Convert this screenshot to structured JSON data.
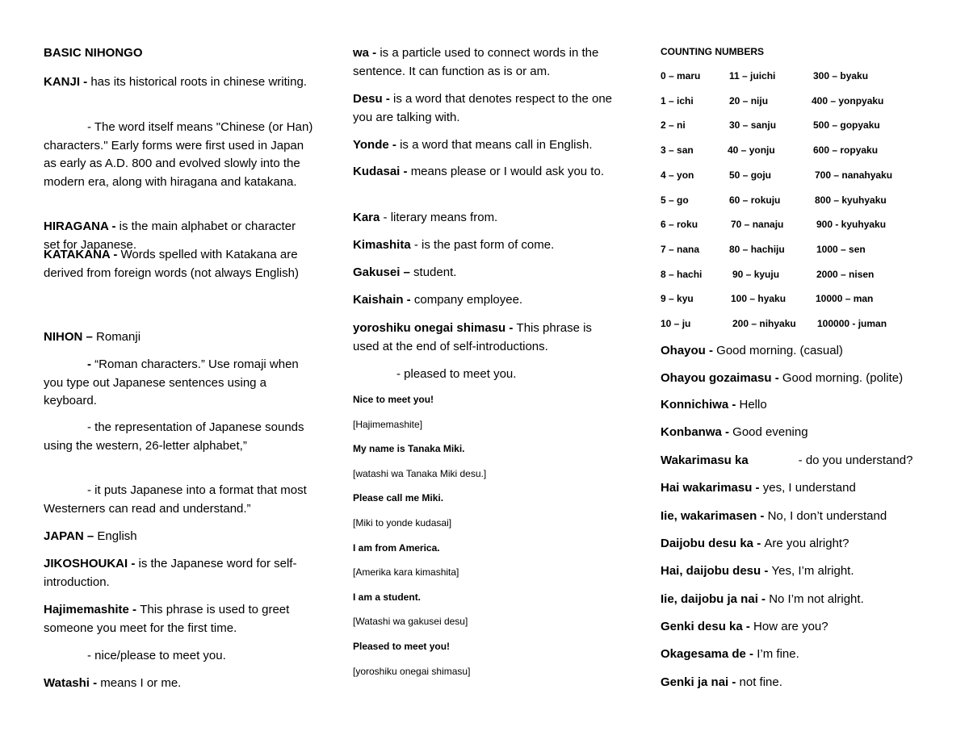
{
  "col1": {
    "title": "BASIC NIHONGO",
    "paras": [
      {
        "term": "KANJI - ",
        "text": "has its historical roots in chinese writing."
      },
      {
        "term": "",
        "text": "- The word itself means \"Chinese (or Han) characters.\" Early forms were first used in Japan as early as A.D. 800 and evolved slowly into the modern era, along with hiragana and katakana."
      },
      {
        "term": "HIRAGANA - ",
        "text": "is the main alphabet or character set for Japanese."
      },
      {
        "term": "KATAKANA - ",
        "text": "Words spelled with Katakana are derived from foreign words (not always English)"
      },
      {
        "term": "NIHON – ",
        "text": "Romanji"
      },
      {
        "term": "- ",
        "text": "“Roman characters.” Use romaji when you type out Japanese sentences using a keyboard."
      },
      {
        "term": "",
        "text": "- the representation of Japanese sounds using the western, 26-letter alphabet,”"
      },
      {
        "term": "",
        "text": "- it puts Japanese into a format that most Westerners can read and understand.”"
      },
      {
        "term": "JAPAN – ",
        "text": "English"
      },
      {
        "term": "JIKOSHOUKAI - ",
        "text": "is the Japanese word for self-introduction."
      },
      {
        "term": "Hajimemashite - ",
        "text": "This phrase is used to greet someone you meet for the first time."
      },
      {
        "term": "",
        "text": "- nice/please to meet you."
      },
      {
        "term": "Watashi - ",
        "text": "means I or me."
      }
    ]
  },
  "col2": {
    "paras": [
      {
        "term": "wa - ",
        "text": "is a particle used to connect words in the sentence. It can function as is or am."
      },
      {
        "term": "Desu - ",
        "text": "is a word that denotes respect to the one you are talking with."
      },
      {
        "term": "Yonde - ",
        "text": "is a word that means call in English."
      },
      {
        "term": "Kudasai - ",
        "text": "means please or I would ask you to."
      },
      {
        "term": "Kara ",
        "text": "- literary means from."
      },
      {
        "term": "Kimashita ",
        "text": "- is the past form of come."
      },
      {
        "term": "Gakusei – ",
        "text": "student."
      },
      {
        "term": "Kaishain - ",
        "text": "company employee."
      },
      {
        "term": "yoroshiku onegai shimasu - ",
        "text": "This phrase is used at the end of self-introductions."
      },
      {
        "term": "",
        "text": "- pleased to meet you."
      }
    ],
    "phrases": [
      "Nice to meet you!",
      "[Hajimemashite]",
      "My name is Tanaka Miki.",
      "[watashi wa Tanaka Miki desu.]",
      "Please call me Miki.",
      "[Miki to yonde kudasai]",
      "I am from America.",
      "[Amerika kara kimashita]",
      "I am a student.",
      "[Watashi wa gakusei desu]",
      "Pleased to meet you!",
      "[yoroshiku onegai shimasu]"
    ]
  },
  "col3": {
    "counting_title": "COUNTING NUMBERS",
    "numbers": [
      [
        "0 – maru",
        "11 – juichi",
        "300 – byaku"
      ],
      [
        "1 – ichi",
        "20 – niju",
        "400 – yonpyaku"
      ],
      [
        "2 – ni",
        "30 – sanju",
        "500 – gopyaku"
      ],
      [
        "3 – san",
        "40 – yonju",
        "600 – ropyaku"
      ],
      [
        "4 – yon",
        "50 – goju",
        "700 – nanahyaku"
      ],
      [
        "5 – go",
        "60 – rokuju",
        "800 – kyuhyaku"
      ],
      [
        "6 – roku",
        "70 – nanaju",
        "900 - kyuhyaku"
      ],
      [
        "7 – nana",
        "80 – hachiju",
        "1000 – sen"
      ],
      [
        "8 – hachi",
        "90 – kyuju",
        "2000 – nisen"
      ],
      [
        "9 – kyu",
        "100 – hyaku",
        "10000 – man"
      ],
      [
        "10 – ju",
        "200 – nihyaku",
        "100000 - juman"
      ]
    ],
    "expressions": [
      {
        "term": "Ohayou - ",
        "text": "Good morning. (casual)"
      },
      {
        "term": "Ohayou gozaimasu - ",
        "text": "Good morning. (polite)"
      },
      {
        "term": "Konnichiwa - ",
        "text": "Hello"
      },
      {
        "term": "Konbanwa - ",
        "text": "Good evening"
      },
      {
        "term": "Wakarimasu ka",
        "text": "- do you understand?"
      },
      {
        "term": "Hai wakarimasu - ",
        "text": "yes, I understand"
      },
      {
        "term": "Iie, wakarimasen - ",
        "text": "No, I don’t understand"
      },
      {
        "term": "Daijobu desu ka - ",
        "text": "Are you alright?"
      },
      {
        "term": "Hai, daijobu desu - ",
        "text": "Yes, I’m alright."
      },
      {
        "term": "Iie, daijobu ja nai - ",
        "text": "No I’m not alright."
      },
      {
        "term": "Genki desu ka - ",
        "text": "How are you?"
      },
      {
        "term": "Okagesama de - ",
        "text": "I’m fine."
      },
      {
        "term": "Genki ja nai - ",
        "text": "not fine."
      }
    ]
  }
}
